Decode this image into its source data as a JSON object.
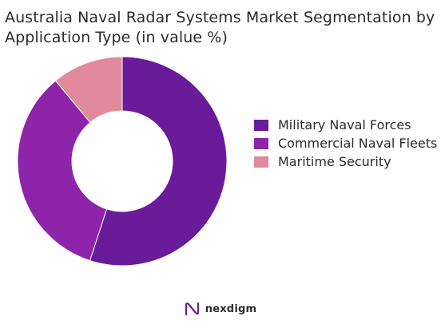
{
  "title": "Australia Naval Radar Systems Market Segmentation by Application Type (in value %)",
  "chart_data": {
    "type": "pie",
    "variant": "donut",
    "title": "Australia Naval Radar Systems Market Segmentation by Application Type (in value %)",
    "categories": [
      "Military Naval Forces",
      "Commercial Naval Fleets",
      "Maritime Security"
    ],
    "values": [
      55,
      34,
      11
    ],
    "colors": [
      "#6a1b9a",
      "#8e24aa",
      "#e08a9c"
    ],
    "legend_position": "right"
  },
  "legend": [
    {
      "label": "Military Naval Forces",
      "color": "#6a1b9a"
    },
    {
      "label": "Commercial Naval Fleets",
      "color": "#8e24aa"
    },
    {
      "label": "Maritime Security",
      "color": "#e08a9c"
    }
  ],
  "logo": {
    "text": "nexdigm",
    "icon": "nexdigm-logo-icon"
  }
}
